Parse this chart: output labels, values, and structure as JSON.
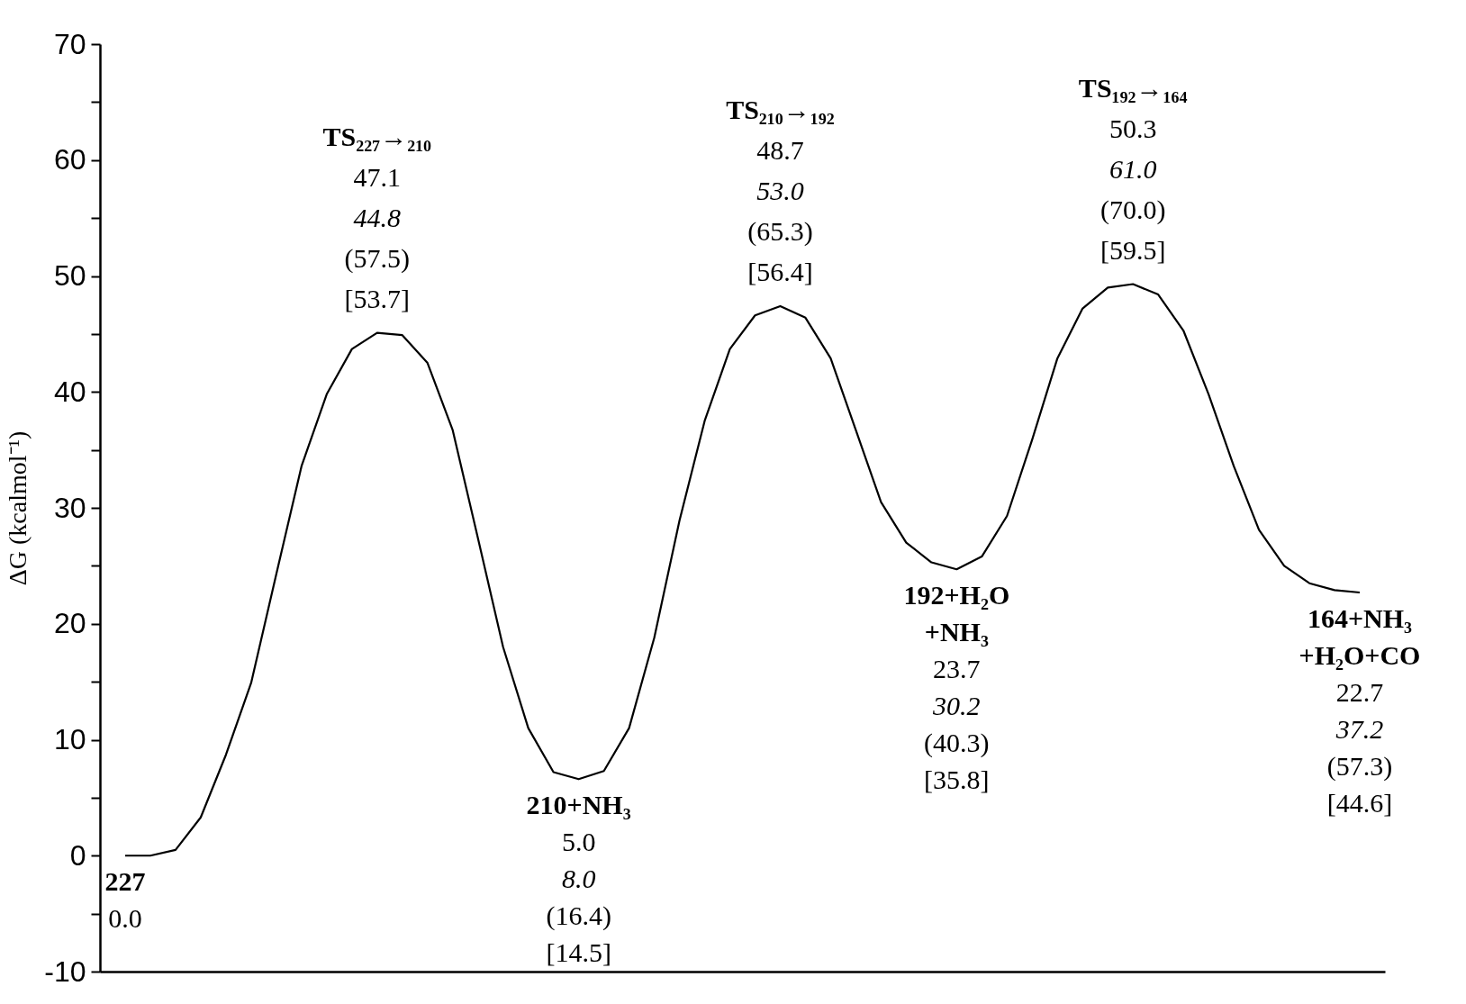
{
  "chart_data": {
    "type": "line",
    "ylabel": "ΔG (kcalmol⁻¹)",
    "tick_labels": "y",
    "grid": false,
    "marker": "none",
    "line_style": "solid",
    "categories": [
      null,
      null,
      null,
      null,
      null,
      null,
      null,
      null,
      null,
      null,
      null,
      null,
      null,
      null,
      null,
      null,
      null,
      null,
      null,
      null,
      null,
      null,
      null,
      null,
      null,
      null,
      null,
      null,
      null,
      null,
      null,
      null,
      null,
      null,
      null,
      null,
      null,
      null,
      null,
      null,
      null,
      null,
      null,
      null,
      null,
      null,
      null,
      null,
      null,
      null
    ],
    "ylim": [
      -10,
      70
    ],
    "yticks": [
      -10,
      {
        "value": -5,
        "label": null
      },
      0,
      {
        "value": 5,
        "label": null
      },
      10,
      {
        "value": 15,
        "label": null
      },
      20,
      {
        "value": 25,
        "label": null
      },
      30,
      {
        "value": 35,
        "label": null
      },
      40,
      {
        "value": 45,
        "label": null
      },
      50,
      {
        "value": 55,
        "label": null
      },
      60,
      {
        "value": 65,
        "label": null
      },
      70
    ],
    "series": [
      {
        "color": "#000000",
        "values": [
          0,
          0,
          0.5,
          3.3,
          8.7,
          14.9,
          24.3,
          33.6,
          39.8,
          43.7,
          45.1,
          44.9,
          42.5,
          36.7,
          27.4,
          18.0,
          11.0,
          7.2,
          6.6,
          7.3,
          11.0,
          18.8,
          28.9,
          37.5,
          43.7,
          46.6,
          47.4,
          46.4,
          42.9,
          36.7,
          30.5,
          27.0,
          25.3,
          24.7,
          25.8,
          29.3,
          35.9,
          42.9,
          47.2,
          49.0,
          49.3,
          48.4,
          45.3,
          39.8,
          33.6,
          28.1,
          25.0,
          23.5,
          22.9,
          22.7
        ]
      }
    ],
    "annotations": [
      "227\n0.0",
      "TS₂₂₇→₂₁₀\n47.1\n44.8\n(57.5)\n[53.7]",
      "210+NH₃\n5.0\n8.0\n(16.4)\n[14.5]",
      "TS₂₁₀→₁₉₂\n48.7\n53.0\n(65.3)\n[56.4]",
      "192+H₂O\n+NH₃\n23.7\n30.2\n(40.3)\n[35.8]",
      "TS₁₉₂→₁₆₄\n50.3\n61.0\n(70.0)\n[59.5]",
      "164+NH₃\n+H₂O+CO\n22.7\n37.2\n(57.3)\n[44.6]"
    ]
  }
}
